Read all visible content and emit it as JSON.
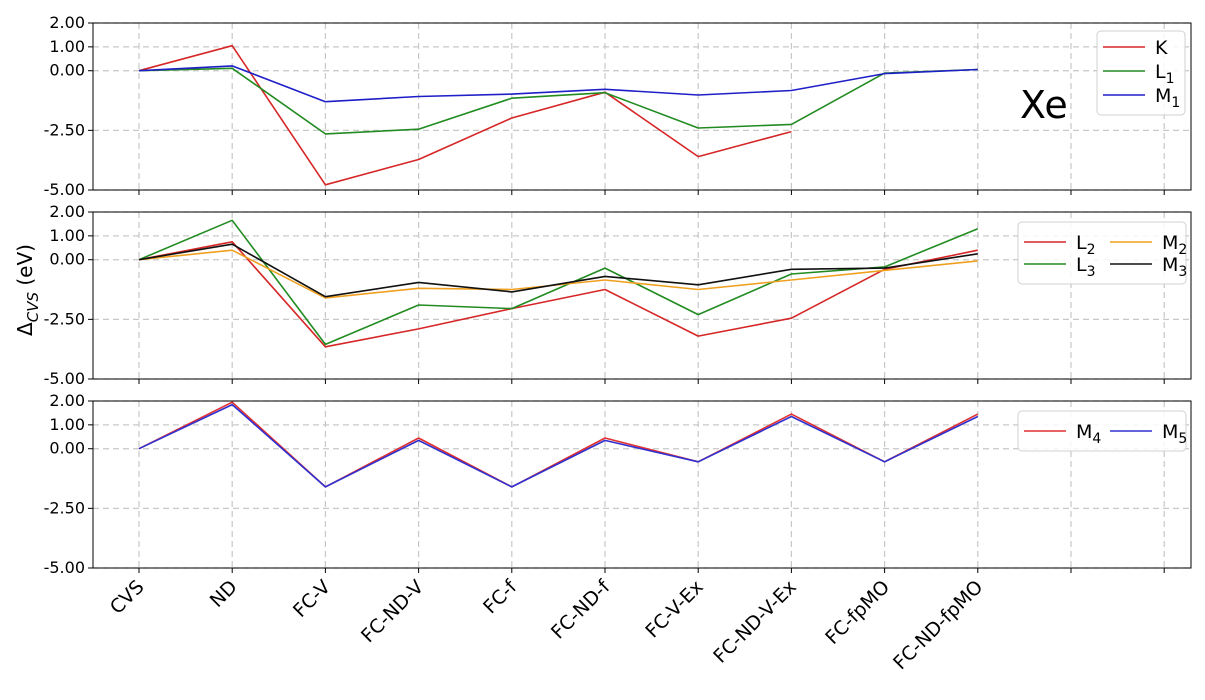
{
  "y_axis_label": {
    "main": "Δ",
    "sub": "CVS",
    "unit": " (eV)"
  },
  "chart_data": [
    {
      "type": "line",
      "annotation": "Xe",
      "categories": [
        "CVS",
        "ND",
        "FC-V",
        "FC-ND-V",
        "FC-f",
        "FC-ND-f",
        "FC-V-Ex",
        "FC-ND-V-Ex",
        "FC-fpMO",
        "FC-ND-fpMO",
        "",
        ""
      ],
      "ylim": [
        -5.0,
        2.0
      ],
      "yticks": [
        2.0,
        1.0,
        0.0,
        -2.5,
        -5.0
      ],
      "ytick_labels": [
        "2.00",
        "1.00",
        "0.00",
        "-2.50",
        "-5.00"
      ],
      "grid": true,
      "legend_position": "top-right",
      "legend_columns": 1,
      "series": [
        {
          "name": "K",
          "name_main": "K",
          "name_sub": "",
          "color": "#d62728",
          "values": [
            0.0,
            1.05,
            -4.78,
            -3.72,
            -1.98,
            -0.9,
            -3.6,
            -2.55,
            null,
            null,
            null,
            null
          ]
        },
        {
          "name": "L1",
          "name_main": "L",
          "name_sub": "1",
          "color": "#228b22",
          "values": [
            0.0,
            0.1,
            -2.65,
            -2.45,
            -1.15,
            -0.92,
            -2.4,
            -2.25,
            -0.1,
            0.05,
            null,
            null
          ]
        },
        {
          "name": "M1",
          "name_main": "M",
          "name_sub": "1",
          "color": "#1f1fc8",
          "values": [
            0.0,
            0.2,
            -1.3,
            -1.08,
            -0.98,
            -0.78,
            -1.02,
            -0.83,
            -0.12,
            0.05,
            null,
            null
          ]
        }
      ]
    },
    {
      "type": "line",
      "categories": [
        "CVS",
        "ND",
        "FC-V",
        "FC-ND-V",
        "FC-f",
        "FC-ND-f",
        "FC-V-Ex",
        "FC-ND-V-Ex",
        "FC-fpMO",
        "FC-ND-fpMO",
        "",
        ""
      ],
      "ylim": [
        -5.0,
        2.0
      ],
      "yticks": [
        2.0,
        1.0,
        0.0,
        -2.5,
        -5.0
      ],
      "ytick_labels": [
        "2.00",
        "1.00",
        "0.00",
        "-2.50",
        "-5.00"
      ],
      "grid": true,
      "legend_position": "top-right",
      "legend_columns": 2,
      "series": [
        {
          "name": "L2",
          "name_main": "L",
          "name_sub": "2",
          "color": "#d62728",
          "values": [
            0.0,
            0.75,
            -3.65,
            -2.9,
            -2.05,
            -1.25,
            -3.2,
            -2.45,
            -0.4,
            0.4,
            null,
            null
          ]
        },
        {
          "name": "L3",
          "name_main": "L",
          "name_sub": "3",
          "color": "#228b22",
          "values": [
            0.0,
            1.65,
            -3.55,
            -1.9,
            -2.05,
            -0.35,
            -2.3,
            -0.6,
            -0.3,
            1.3,
            null,
            null
          ]
        },
        {
          "name": "M2",
          "name_main": "M",
          "name_sub": "2",
          "color": "#f0a020",
          "values": [
            0.0,
            0.4,
            -1.6,
            -1.2,
            -1.25,
            -0.85,
            -1.25,
            -0.85,
            -0.45,
            -0.05,
            null,
            null
          ]
        },
        {
          "name": "M3",
          "name_main": "M",
          "name_sub": "3",
          "color": "#111111",
          "values": [
            0.0,
            0.65,
            -1.55,
            -0.95,
            -1.35,
            -0.7,
            -1.05,
            -0.4,
            -0.35,
            0.25,
            null,
            null
          ]
        }
      ]
    },
    {
      "type": "line",
      "categories": [
        "CVS",
        "ND",
        "FC-V",
        "FC-ND-V",
        "FC-f",
        "FC-ND-f",
        "FC-V-Ex",
        "FC-ND-V-Ex",
        "FC-fpMO",
        "FC-ND-fpMO",
        "",
        ""
      ],
      "ylim": [
        -5.0,
        2.0
      ],
      "yticks": [
        2.0,
        1.0,
        0.0,
        -2.5,
        -5.0
      ],
      "ytick_labels": [
        "2.00",
        "1.00",
        "0.00",
        "-2.50",
        "-5.00"
      ],
      "grid": true,
      "legend_position": "top-right",
      "legend_columns": 2,
      "series": [
        {
          "name": "M4",
          "name_main": "M",
          "name_sub": "4",
          "color": "#e03030",
          "values": [
            0.0,
            1.95,
            -1.6,
            0.45,
            -1.6,
            0.45,
            -0.55,
            1.45,
            -0.55,
            1.45,
            null,
            null
          ]
        },
        {
          "name": "M5",
          "name_main": "M",
          "name_sub": "5",
          "color": "#3030d0",
          "values": [
            0.0,
            1.85,
            -1.6,
            0.35,
            -1.6,
            0.35,
            -0.55,
            1.35,
            -0.55,
            1.35,
            null,
            null
          ]
        }
      ]
    }
  ]
}
